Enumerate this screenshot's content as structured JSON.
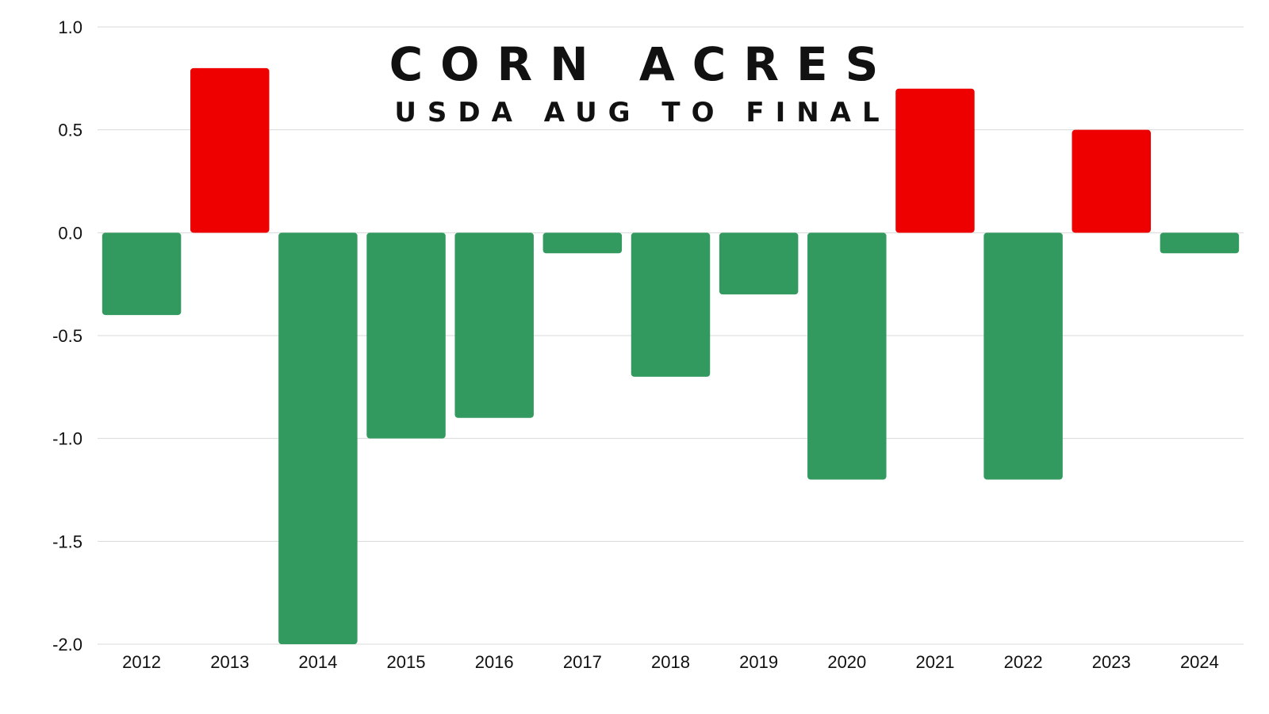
{
  "chart_data": {
    "type": "bar",
    "title": "CORN ACRES",
    "subtitle": "USDA AUG TO FINAL",
    "xlabel": "",
    "ylabel": "",
    "categories": [
      "2012",
      "2013",
      "2014",
      "2015",
      "2016",
      "2017",
      "2018",
      "2019",
      "2020",
      "2021",
      "2022",
      "2023",
      "2024"
    ],
    "values": [
      -0.4,
      0.8,
      -2.0,
      -1.0,
      -0.9,
      -0.1,
      -0.7,
      -0.3,
      -1.2,
      0.7,
      -1.2,
      0.5,
      -0.1
    ],
    "ylim": [
      -2.0,
      1.0
    ],
    "yticks": [
      "1.0",
      "0.5",
      "0.0",
      "-0.5",
      "-1.0",
      "-1.5",
      "-2.0"
    ],
    "grid": true,
    "colors": {
      "positive": "#ee0000",
      "negative": "#339a5f",
      "grid": "#d9d9d9"
    }
  }
}
